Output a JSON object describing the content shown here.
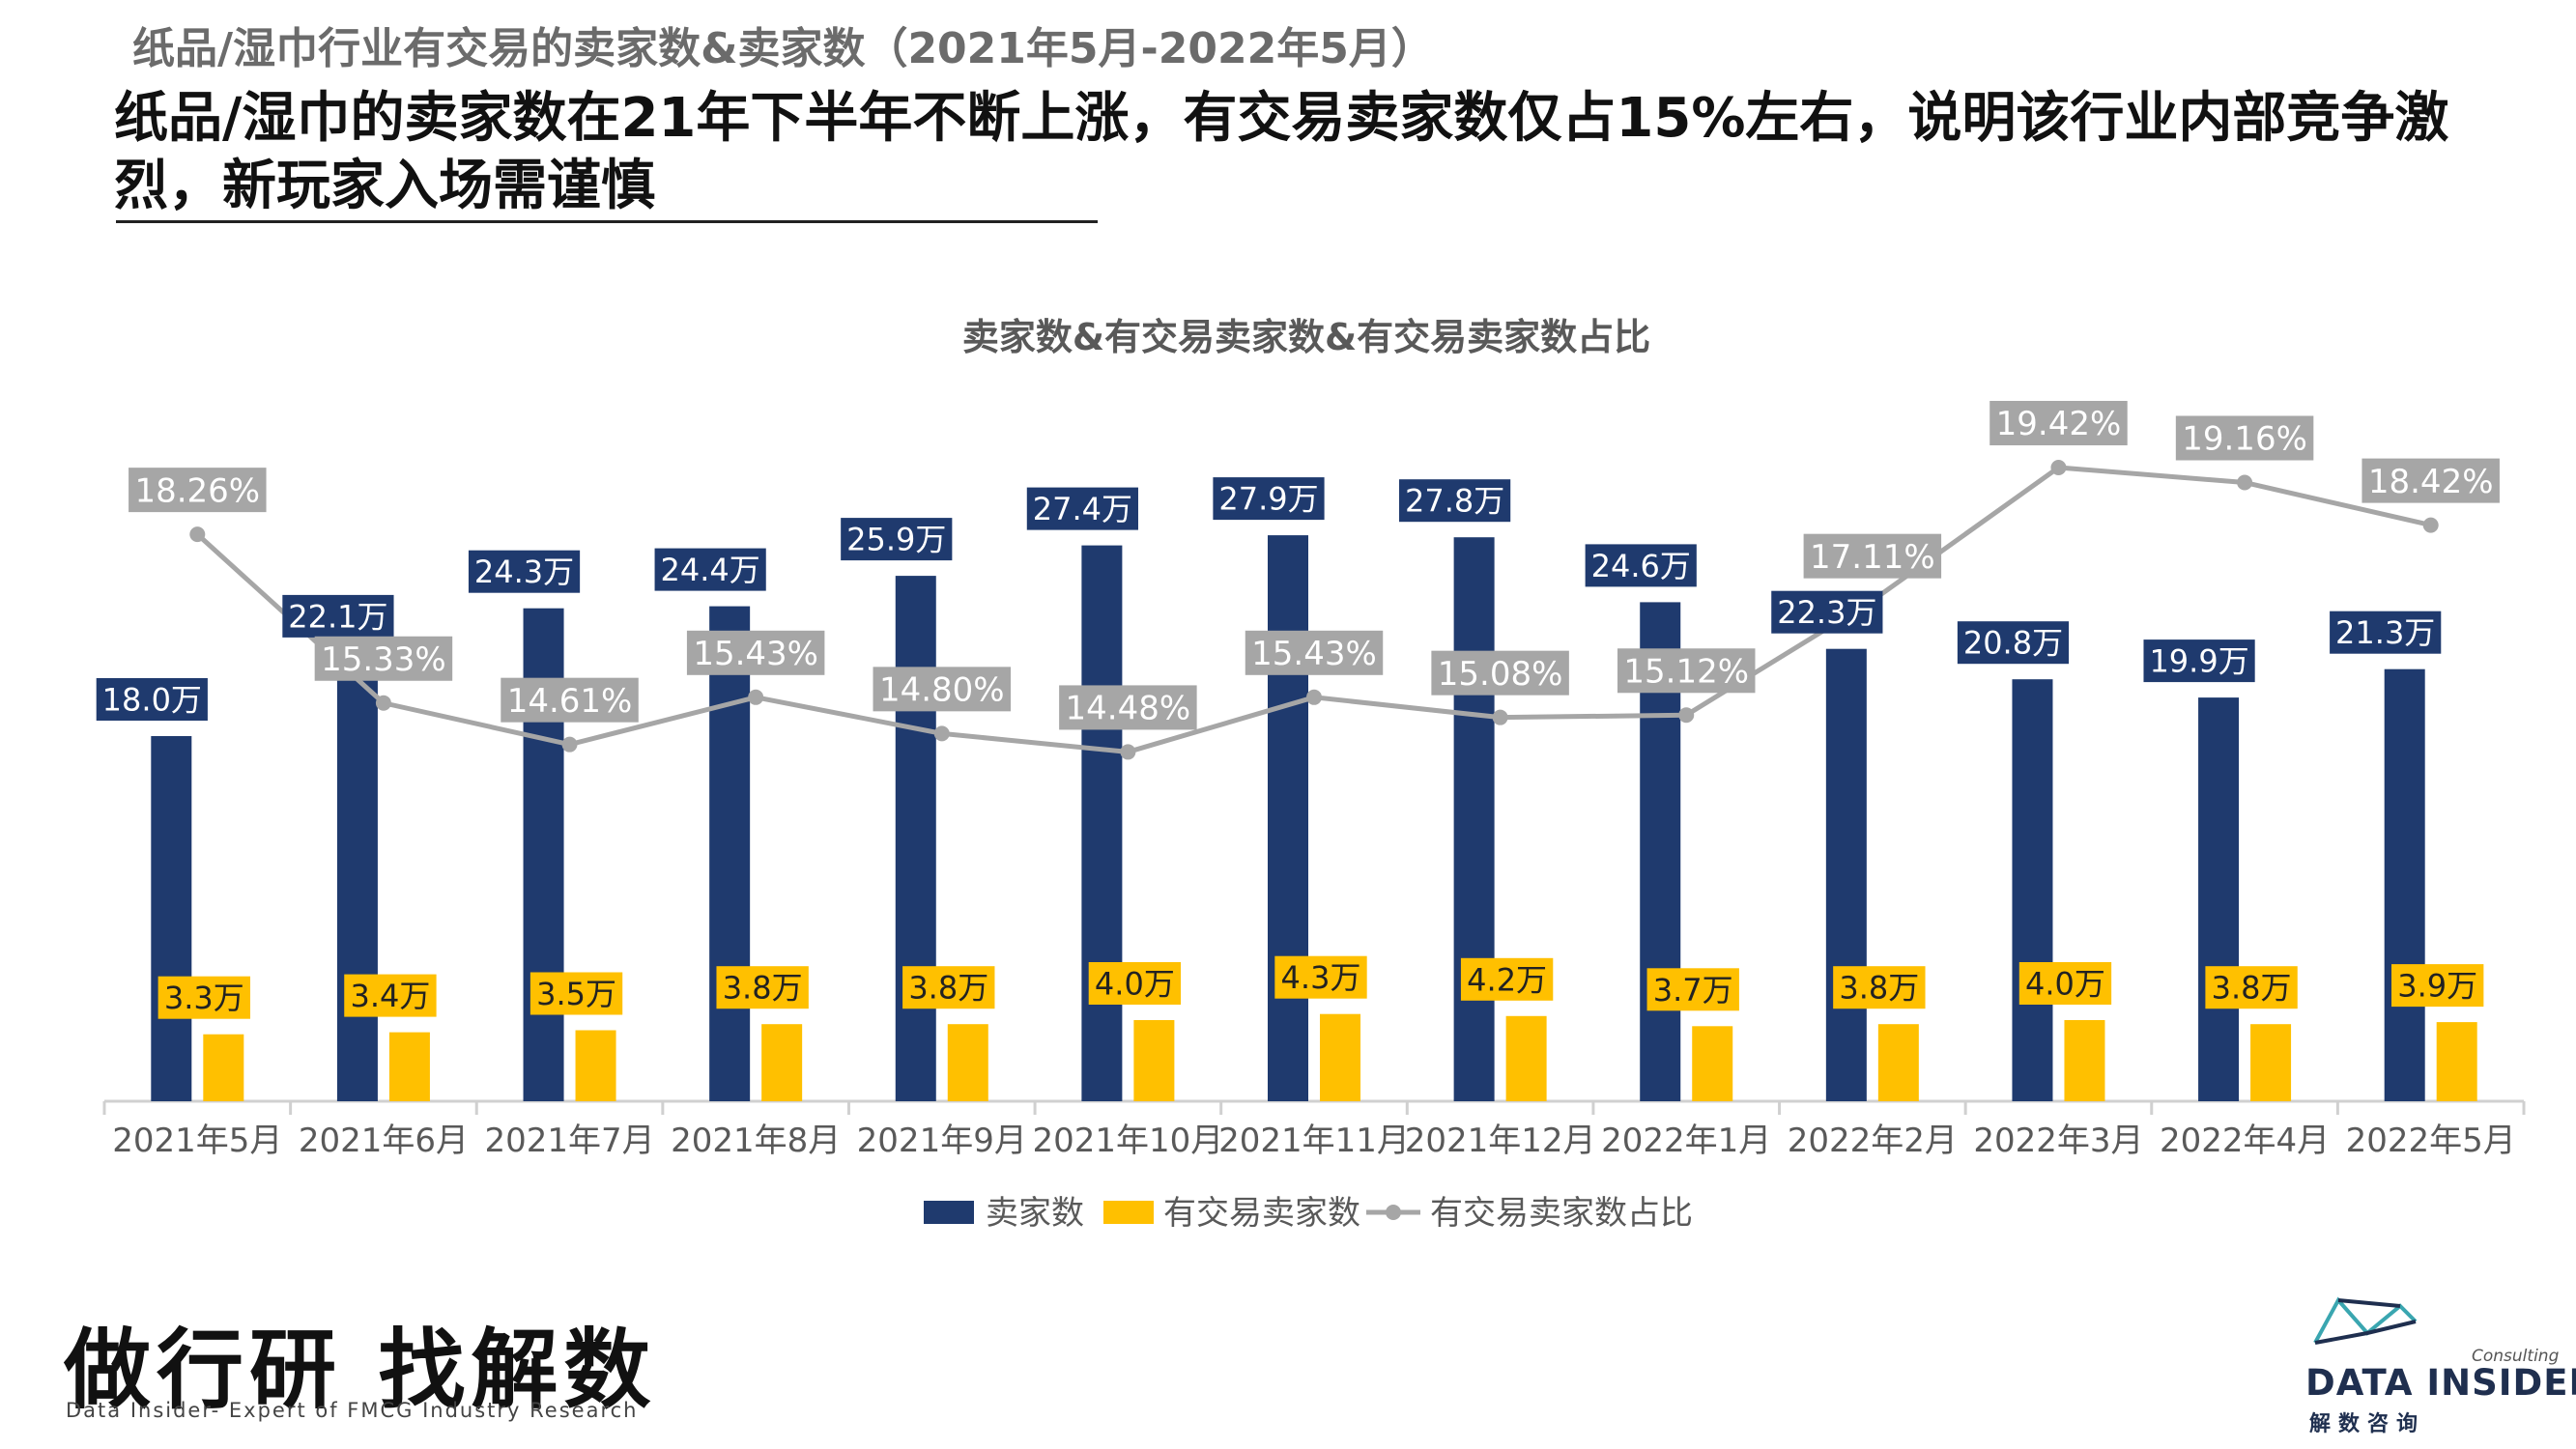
{
  "header": {
    "subtitle": "纸品/湿巾行业有交易的卖家数&卖家数（2021年5月-2022年5月）",
    "headline": "纸品/湿巾的卖家数在21年下半年不断上涨，有交易卖家数仅占15%左右，说明该行业内部竞争激烈，新玩家入场需谨慎"
  },
  "chart_data": {
    "type": "bar",
    "title": "卖家数&有交易卖家数&有交易卖家数占比",
    "categories": [
      "2021年5月",
      "2021年6月",
      "2021年7月",
      "2021年8月",
      "2021年9月",
      "2021年10月",
      "2021年11月",
      "2021年12月",
      "2022年1月",
      "2022年2月",
      "2022年3月",
      "2022年4月",
      "2022年5月"
    ],
    "series": [
      {
        "name": "卖家数",
        "kind": "bar",
        "color": "#1f3a6e",
        "values": [
          18.0,
          22.1,
          24.3,
          24.4,
          25.9,
          27.4,
          27.9,
          27.8,
          24.6,
          22.3,
          20.8,
          19.9,
          21.3
        ],
        "labels": [
          "18.0万",
          "22.1万",
          "24.3万",
          "24.4万",
          "25.9万",
          "27.4万",
          "27.9万",
          "27.8万",
          "24.6万",
          "22.3万",
          "20.8万",
          "19.9万",
          "21.3万"
        ]
      },
      {
        "name": "有交易卖家数",
        "kind": "bar",
        "color": "#ffc000",
        "values": [
          3.3,
          3.4,
          3.5,
          3.8,
          3.8,
          4.0,
          4.3,
          4.2,
          3.7,
          3.8,
          4.0,
          3.8,
          3.9
        ],
        "labels": [
          "3.3万",
          "3.4万",
          "3.5万",
          "3.8万",
          "3.8万",
          "4.0万",
          "4.3万",
          "4.2万",
          "3.7万",
          "3.8万",
          "4.0万",
          "3.8万",
          "3.9万"
        ]
      },
      {
        "name": "有交易卖家数占比",
        "kind": "line",
        "color": "#a6a6a6",
        "values": [
          18.26,
          15.33,
          14.61,
          15.43,
          14.8,
          14.48,
          15.43,
          15.08,
          15.12,
          17.11,
          19.42,
          19.16,
          18.42
        ],
        "labels": [
          "18.26%",
          "15.33%",
          "14.61%",
          "15.43%",
          "14.80%",
          "14.48%",
          "15.43%",
          "15.08%",
          "15.12%",
          "17.11%",
          "19.42%",
          "19.16%",
          "18.42%"
        ]
      }
    ],
    "legend_position": "bottom",
    "grid": false
  },
  "footer": {
    "slogan": "做行研 找解数",
    "tagline": "Data Insider- Expert of FMCG Industry Research",
    "logo_small": "Consulting",
    "logo_name": "DATA INSIDER",
    "logo_cn": "解数咨询"
  }
}
